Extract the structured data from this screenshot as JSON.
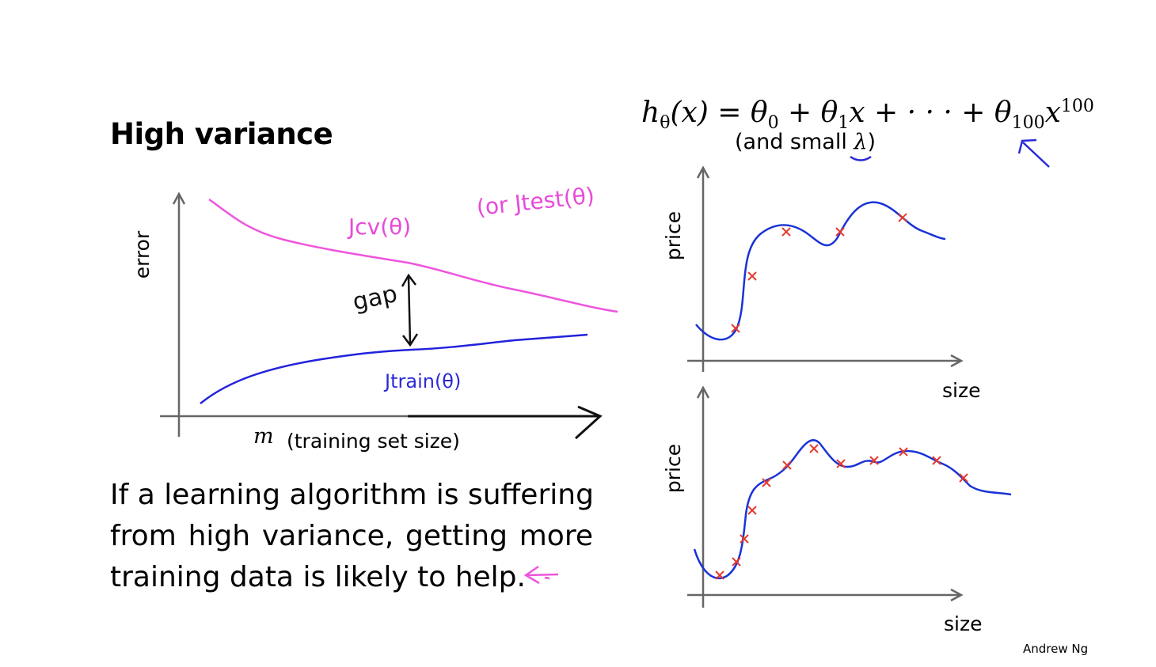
{
  "slide": {
    "title": "High variance",
    "body_lines": [
      "If a learning algorithm is suffering",
      "from high variance, getting more",
      "training data is likely to help."
    ],
    "author": "Andrew Ng"
  },
  "formula": {
    "h": "h",
    "h_sub": "θ",
    "rhs_1": "(x) = θ",
    "sub_0": "0",
    "rhs_2": " + θ",
    "sub_1": "1",
    "rhs_3": "x + · · · + θ",
    "sub_100": "100",
    "rhs_4": "x",
    "sup_100": "100",
    "note_prefix": "(and small ",
    "note_lambda": "λ",
    "note_suffix": ")"
  },
  "learning_curve": {
    "ylabel": "error",
    "xlabel_var": "m",
    "xlabel": "(training set size)",
    "jcv_label": "Jcv(θ)",
    "jtest_label": "(or Jtest(θ)",
    "gap_label": "gap",
    "jtrain_label": "Jtrain(θ)",
    "colors": {
      "cv": "#ee55dd",
      "train": "#2222dd"
    }
  },
  "fit_plots": {
    "ylabel": "price",
    "xlabel": "size",
    "marker_color": "#e63a2e",
    "curve_color": "#1a33d6"
  }
}
